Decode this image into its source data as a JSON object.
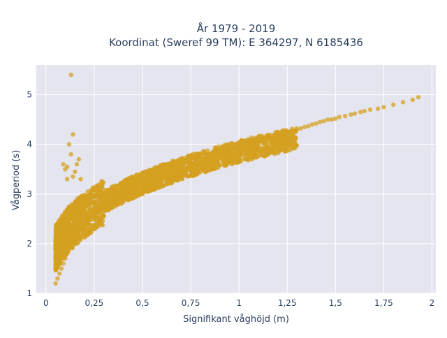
{
  "title": {
    "line1": "År 1979 - 2019",
    "line2": "Koordinat (Sweref 99 TM): E 364297, N 6185436"
  },
  "chart_data": {
    "type": "scatter",
    "title": "År 1979 - 2019 / Koordinat (Sweref 99 TM): E 364297, N 6185436",
    "xlabel": "Signifikant våghöjd (m)",
    "ylabel": "Vågperiod (s)",
    "xlim": [
      -0.05,
      2.02
    ],
    "ylim": [
      1.0,
      5.6
    ],
    "x_ticks": [
      0,
      0.25,
      0.5,
      0.75,
      1.0,
      1.25,
      1.5,
      1.75,
      2.0
    ],
    "x_tick_labels": [
      "0",
      "0,25",
      "0,5",
      "0,75",
      "1",
      "1,25",
      "1,5",
      "1,75",
      "2"
    ],
    "y_ticks": [
      1,
      2,
      3,
      4,
      5
    ],
    "y_tick_labels": [
      "1",
      "2",
      "3",
      "4",
      "5"
    ],
    "grid": true,
    "legend": "none",
    "marker_color": "#D4A020",
    "plot_background": "#E5E5F0",
    "grid_color": "#FFFFFF",
    "points_note_main_band": "dense cloud following T ≈ 3.1·Hs^0.35 approx",
    "x": [
      0.05,
      0.05,
      0.06,
      0.06,
      0.07,
      0.07,
      0.08,
      0.08,
      0.09,
      0.1,
      0.1,
      0.11,
      0.12,
      0.12,
      0.13,
      0.14,
      0.15,
      0.16,
      0.17,
      0.18,
      0.19,
      0.2,
      0.21,
      0.22,
      0.23,
      0.24,
      0.25,
      0.26,
      0.27,
      0.28,
      0.29,
      0.3,
      0.32,
      0.34,
      0.36,
      0.38,
      0.4,
      0.42,
      0.44,
      0.46,
      0.48,
      0.5,
      0.52,
      0.54,
      0.56,
      0.58,
      0.6,
      0.62,
      0.64,
      0.66,
      0.68,
      0.7,
      0.72,
      0.74,
      0.76,
      0.78,
      0.8,
      0.82,
      0.84,
      0.86,
      0.88,
      0.9,
      0.92,
      0.94,
      0.96,
      0.98,
      1.0,
      1.02,
      1.04,
      1.06,
      1.08,
      1.1,
      1.12,
      1.14,
      1.16,
      1.18,
      1.2,
      1.22,
      1.24,
      1.26,
      1.28,
      1.3,
      1.32,
      1.34,
      1.36,
      1.38,
      1.4,
      1.42,
      1.44,
      1.46,
      1.48,
      1.5,
      1.52,
      1.55,
      1.58,
      1.6,
      1.63,
      1.65,
      1.68,
      1.72,
      1.75,
      1.8,
      1.85,
      1.9,
      1.93,
      0.13,
      0.1,
      0.09,
      0.11,
      0.12,
      0.14,
      0.13,
      0.18,
      0.17,
      0.12,
      0.15,
      0.14,
      0.11,
      0.16
    ],
    "y": [
      1.2,
      1.5,
      1.3,
      1.6,
      1.4,
      1.7,
      1.5,
      1.8,
      1.6,
      1.7,
      1.9,
      1.8,
      1.9,
      2.1,
      2.0,
      2.1,
      2.2,
      2.2,
      2.3,
      2.35,
      2.4,
      2.45,
      2.5,
      2.5,
      2.55,
      2.6,
      2.6,
      2.65,
      2.7,
      2.7,
      2.75,
      2.75,
      2.8,
      2.85,
      2.9,
      2.95,
      3.0,
      3.0,
      3.05,
      3.1,
      3.1,
      3.15,
      3.2,
      3.2,
      3.25,
      3.3,
      3.3,
      3.35,
      3.4,
      3.4,
      3.45,
      3.5,
      3.5,
      3.55,
      3.6,
      3.6,
      3.65,
      3.7,
      3.7,
      3.75,
      3.75,
      3.8,
      3.82,
      3.85,
      3.88,
      3.9,
      3.92,
      3.95,
      3.97,
      4.0,
      4.02,
      4.05,
      4.08,
      4.1,
      4.12,
      4.15,
      4.18,
      4.2,
      4.22,
      4.25,
      4.28,
      4.3,
      4.32,
      4.35,
      4.37,
      4.4,
      4.42,
      4.45,
      4.47,
      4.5,
      4.5,
      4.52,
      4.55,
      4.57,
      4.6,
      4.62,
      4.65,
      4.67,
      4.7,
      4.72,
      4.75,
      4.8,
      4.85,
      4.9,
      4.95,
      5.4,
      3.5,
      3.6,
      3.3,
      4.0,
      4.2,
      3.8,
      3.3,
      3.7,
      2.75,
      3.45,
      3.35,
      3.55,
      3.6
    ]
  }
}
